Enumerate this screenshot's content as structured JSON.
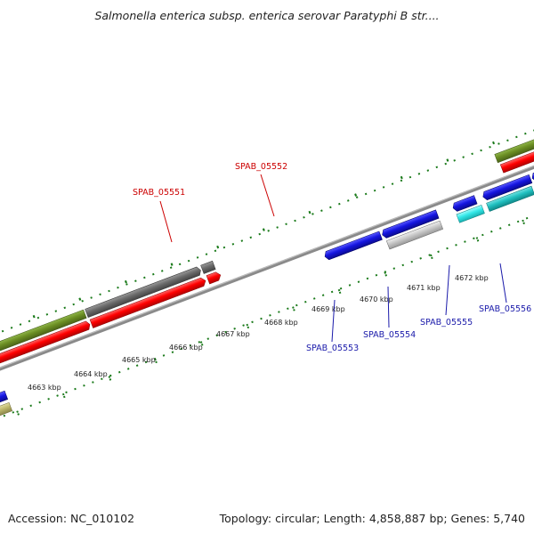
{
  "title": "Salmonella enterica subsp. enterica serovar Paratyphi B str....",
  "footer": {
    "accession": "Accession: NC_010102",
    "summary": "Topology: circular; Length: 4,858,887 bp; Genes: 5,740"
  },
  "scale_labels": [
    "4663 kbp",
    "4664 kbp",
    "4665 kbp",
    "4666 kbp",
    "4667 kbp",
    "4668 kbp",
    "4669 kbp",
    "4670 kbp",
    "4671 kbp",
    "4672 kbp"
  ],
  "gene_labels": {
    "g05551": "SPAB_05551",
    "g05552": "SPAB_05552",
    "g05553": "SPAB_05553",
    "g05554": "SPAB_05554",
    "g05555": "SPAB_05555",
    "g05556": "SPAB_05556"
  },
  "colors": {
    "red": "#ff0000",
    "gray": "#666666",
    "olive": "#6b8e23",
    "blue": "#1515e0",
    "silver": "#c8c8c8",
    "cyan": "#33e0e0",
    "teal": "#20c0c0",
    "khaki": "#bdb76b",
    "tick": "#1a7a1a",
    "backbone": "#888888"
  }
}
